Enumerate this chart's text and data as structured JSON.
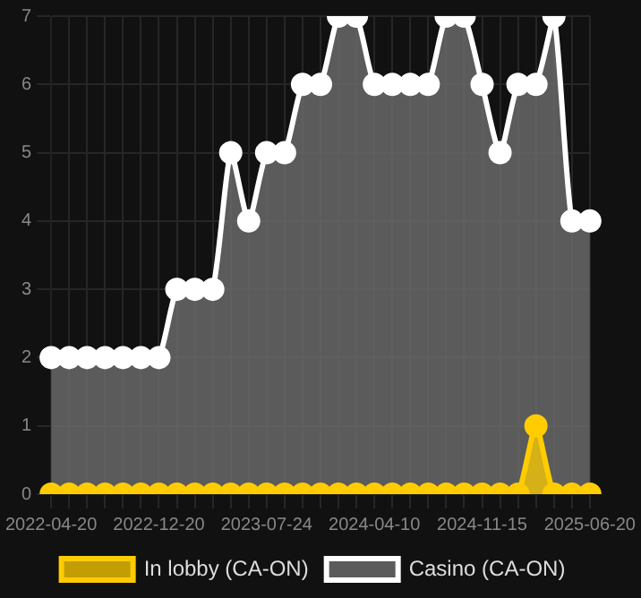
{
  "chart_data": {
    "type": "area",
    "categories": [
      "2022-04-20",
      null,
      null,
      null,
      null,
      null,
      "2022-12-20",
      null,
      null,
      null,
      null,
      null,
      "2023-07-24",
      null,
      null,
      null,
      null,
      null,
      "2024-04-10",
      null,
      null,
      null,
      null,
      null,
      "2024-11-15",
      null,
      null,
      null,
      null,
      null,
      "2025-06-20"
    ],
    "series": [
      {
        "name": "In lobby (CA-ON)",
        "color": "#ffcc00",
        "values": [
          0,
          0,
          0,
          0,
          0,
          0,
          0,
          0,
          0,
          0,
          0,
          0,
          0,
          0,
          0,
          0,
          0,
          0,
          0,
          0,
          0,
          0,
          0,
          0,
          0,
          0,
          0,
          1,
          0,
          0,
          0
        ]
      },
      {
        "name": "Casino (CA-ON)",
        "color": "#ffffff",
        "values": [
          2,
          2,
          2,
          2,
          2,
          2,
          2,
          3,
          3,
          3,
          5,
          4,
          5,
          5,
          6,
          6,
          7,
          7,
          6,
          6,
          6,
          6,
          7,
          7,
          6,
          5,
          6,
          6,
          7,
          4,
          4
        ]
      }
    ],
    "ylim": [
      0,
      7
    ],
    "yticks": [
      0,
      1,
      2,
      3,
      4,
      5,
      6,
      7
    ],
    "grid": true,
    "legend": "bottom",
    "marker": "circle"
  }
}
